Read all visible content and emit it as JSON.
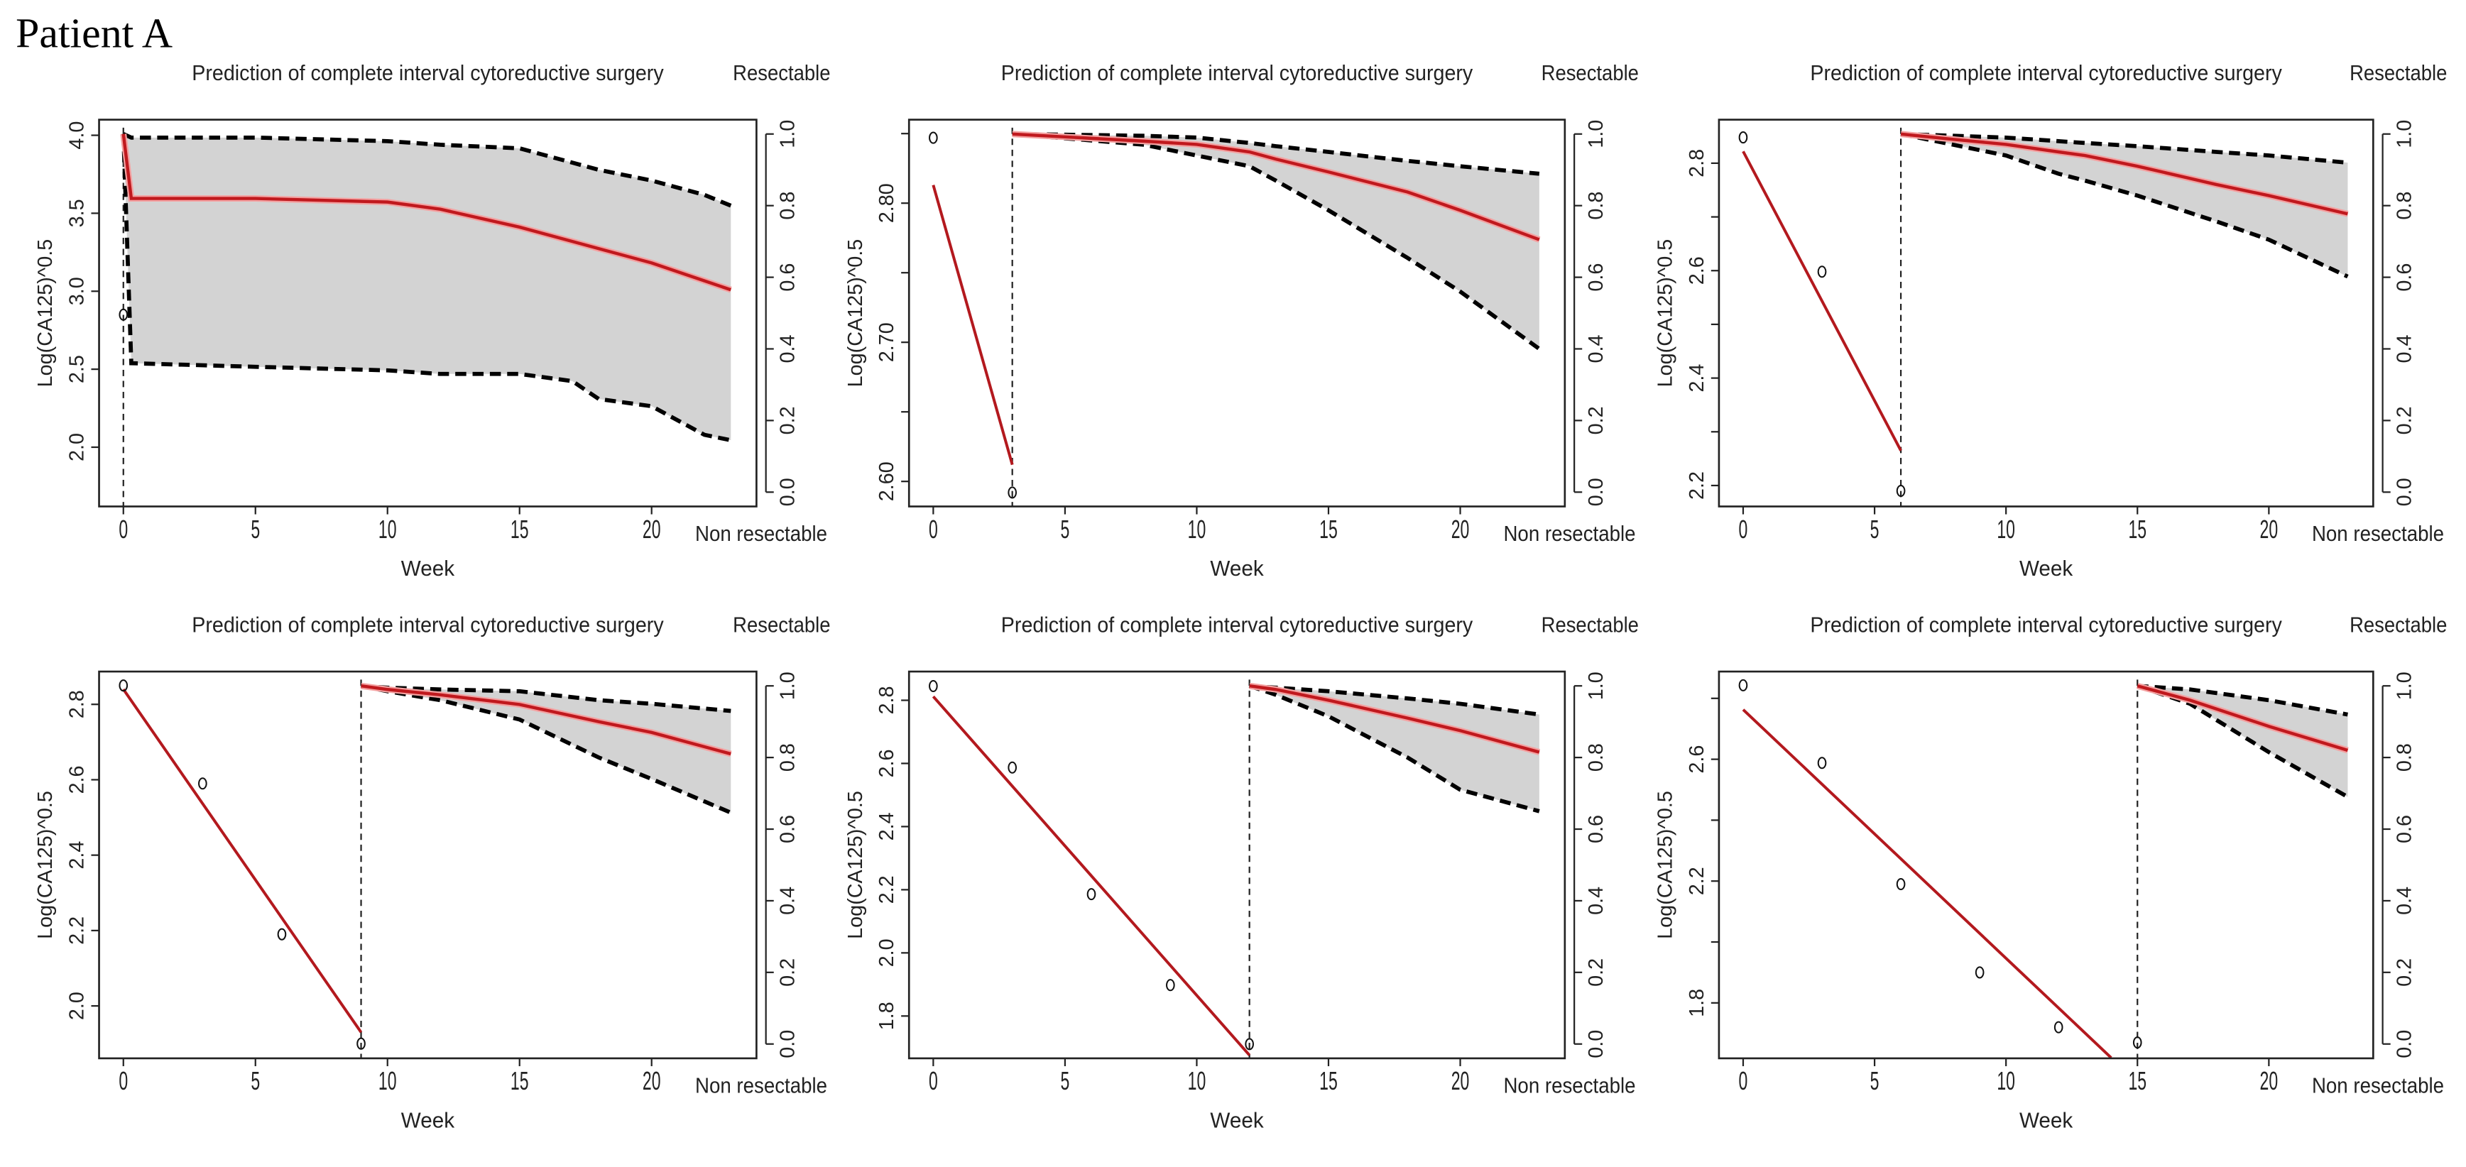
{
  "figure_title": "Patient A",
  "chart_data": [
    {
      "type": "line",
      "title": "Prediction of complete interval cytoreductive surgery",
      "xlabel": "Week",
      "ylabel": "Log(CA125)^0.5",
      "right_axis_top_label": "Resectable",
      "right_axis_bottom_label": "Non resectable",
      "xlim": [
        -0.92,
        23.97
      ],
      "ylim_left": [
        1.62,
        4.1
      ],
      "ylim_right": [
        -0.04,
        1.04
      ],
      "xticks": [
        {
          "v": 0,
          "label": "0"
        },
        {
          "v": 5,
          "label": "5"
        },
        {
          "v": 10,
          "label": "10"
        },
        {
          "v": 15,
          "label": "15"
        },
        {
          "v": 20,
          "label": "20"
        }
      ],
      "yticks_left": [
        {
          "v": 2.0,
          "label": "2.0"
        },
        {
          "v": 2.5,
          "label": "2.5"
        },
        {
          "v": 3.0,
          "label": "3.0"
        },
        {
          "v": 3.5,
          "label": "3.5"
        },
        {
          "v": 4.0,
          "label": "4.0"
        }
      ],
      "yticks_right": [
        {
          "v": 0,
          "label": "0.0"
        },
        {
          "v": 0.2,
          "label": "0.2"
        },
        {
          "v": 0.4,
          "label": "0.4"
        },
        {
          "v": 0.6,
          "label": "0.6"
        },
        {
          "v": 0.8,
          "label": "0.8"
        },
        {
          "v": 1.0,
          "label": "1.0"
        }
      ],
      "cutoff_week": 0,
      "observed": {
        "x": [
          0
        ],
        "y": [
          2.85
        ]
      },
      "fit_line": {
        "x": [],
        "y": []
      },
      "prediction": {
        "x": [
          0,
          0.3,
          5,
          10,
          12,
          15,
          17,
          18,
          20,
          22,
          23
        ],
        "median": [
          1.0,
          0.82,
          0.82,
          0.81,
          0.79,
          0.74,
          0.7,
          0.68,
          0.64,
          0.59,
          0.565
        ],
        "upper": [
          1.0,
          0.99,
          0.99,
          0.98,
          0.97,
          0.96,
          0.92,
          0.9,
          0.87,
          0.83,
          0.8
        ],
        "lower": [
          1.0,
          0.36,
          0.35,
          0.34,
          0.33,
          0.33,
          0.31,
          0.26,
          0.24,
          0.16,
          0.145
        ]
      }
    },
    {
      "type": "line",
      "title": "Prediction of complete interval cytoreductive surgery",
      "xlabel": "Week",
      "ylabel": "Log(CA125)^0.5",
      "right_axis_top_label": "Resectable",
      "right_axis_bottom_label": "Non resectable",
      "xlim": [
        -0.92,
        23.97
      ],
      "ylim_left": [
        2.582,
        2.86
      ],
      "ylim_right": [
        -0.04,
        1.04
      ],
      "xticks": [
        {
          "v": 0,
          "label": "0"
        },
        {
          "v": 5,
          "label": "5"
        },
        {
          "v": 10,
          "label": "10"
        },
        {
          "v": 15,
          "label": "15"
        },
        {
          "v": 20,
          "label": "20"
        }
      ],
      "yticks_left": [
        {
          "v": 2.6,
          "label": "2.60"
        },
        {
          "v": 2.65,
          "label": ""
        },
        {
          "v": 2.7,
          "label": "2.70"
        },
        {
          "v": 2.75,
          "label": ""
        },
        {
          "v": 2.8,
          "label": "2.80"
        },
        {
          "v": 2.85,
          "label": ""
        }
      ],
      "yticks_right": [
        {
          "v": 0,
          "label": "0.0"
        },
        {
          "v": 0.2,
          "label": "0.2"
        },
        {
          "v": 0.4,
          "label": "0.4"
        },
        {
          "v": 0.6,
          "label": "0.6"
        },
        {
          "v": 0.8,
          "label": "0.8"
        },
        {
          "v": 1.0,
          "label": "1.0"
        }
      ],
      "cutoff_week": 3,
      "observed": {
        "x": [
          0,
          3
        ],
        "y": [
          2.847,
          2.592
        ]
      },
      "fit_line": {
        "x": [
          0,
          3
        ],
        "y": [
          2.813,
          2.612
        ]
      },
      "prediction": {
        "x": [
          3,
          8,
          10,
          12,
          13,
          15,
          18,
          20,
          23
        ],
        "median": [
          1.0,
          0.98,
          0.971,
          0.95,
          0.93,
          0.894,
          0.838,
          0.787,
          0.705
        ],
        "upper": [
          1.0,
          0.995,
          0.99,
          0.975,
          0.966,
          0.95,
          0.925,
          0.91,
          0.889
        ],
        "lower": [
          1.0,
          0.97,
          0.94,
          0.91,
          0.87,
          0.787,
          0.654,
          0.56,
          0.4
        ]
      }
    },
    {
      "type": "line",
      "title": "Prediction of complete interval cytoreductive surgery",
      "xlabel": "Week",
      "ylabel": "Log(CA125)^0.5",
      "right_axis_top_label": "Resectable",
      "right_axis_bottom_label": "Non resectable",
      "xlim": [
        -0.92,
        23.97
      ],
      "ylim_left": [
        2.161,
        2.881
      ],
      "ylim_right": [
        -0.04,
        1.04
      ],
      "xticks": [
        {
          "v": 0,
          "label": "0"
        },
        {
          "v": 5,
          "label": "5"
        },
        {
          "v": 10,
          "label": "10"
        },
        {
          "v": 15,
          "label": "15"
        },
        {
          "v": 20,
          "label": "20"
        }
      ],
      "yticks_left": [
        {
          "v": 2.2,
          "label": "2.2"
        },
        {
          "v": 2.3,
          "label": ""
        },
        {
          "v": 2.4,
          "label": "2.4"
        },
        {
          "v": 2.5,
          "label": ""
        },
        {
          "v": 2.6,
          "label": "2.6"
        },
        {
          "v": 2.7,
          "label": ""
        },
        {
          "v": 2.8,
          "label": "2.8"
        }
      ],
      "yticks_right": [
        {
          "v": 0,
          "label": "0.0"
        },
        {
          "v": 0.2,
          "label": "0.2"
        },
        {
          "v": 0.4,
          "label": "0.4"
        },
        {
          "v": 0.6,
          "label": "0.6"
        },
        {
          "v": 0.8,
          "label": "0.8"
        },
        {
          "v": 1.0,
          "label": "1.0"
        }
      ],
      "cutoff_week": 6,
      "observed": {
        "x": [
          0,
          3,
          6
        ],
        "y": [
          2.848,
          2.598,
          2.19
        ]
      },
      "fit_line": {
        "x": [
          0,
          6
        ],
        "y": [
          2.822,
          2.265
        ]
      },
      "prediction": {
        "x": [
          6,
          8,
          10,
          12,
          13,
          15,
          18,
          20,
          23
        ],
        "median": [
          1.0,
          0.985,
          0.971,
          0.95,
          0.94,
          0.91,
          0.859,
          0.828,
          0.777
        ],
        "upper": [
          1.0,
          0.995,
          0.99,
          0.98,
          0.975,
          0.966,
          0.95,
          0.94,
          0.92
        ],
        "lower": [
          1.0,
          0.97,
          0.94,
          0.889,
          0.87,
          0.828,
          0.756,
          0.705,
          0.602
        ]
      }
    },
    {
      "type": "line",
      "title": "Prediction of complete interval cytoreductive surgery",
      "xlabel": "Week",
      "ylabel": "Log(CA125)^0.5",
      "right_axis_top_label": "Resectable",
      "right_axis_bottom_label": "Non resectable",
      "xlim": [
        -0.92,
        23.97
      ],
      "ylim_left": [
        1.861,
        2.887
      ],
      "ylim_right": [
        -0.04,
        1.04
      ],
      "xticks": [
        {
          "v": 0,
          "label": "0"
        },
        {
          "v": 5,
          "label": "5"
        },
        {
          "v": 10,
          "label": "10"
        },
        {
          "v": 15,
          "label": "15"
        },
        {
          "v": 20,
          "label": "20"
        }
      ],
      "yticks_left": [
        {
          "v": 2.0,
          "label": "2.0"
        },
        {
          "v": 2.2,
          "label": "2.2"
        },
        {
          "v": 2.4,
          "label": "2.4"
        },
        {
          "v": 2.6,
          "label": "2.6"
        },
        {
          "v": 2.8,
          "label": "2.8"
        }
      ],
      "yticks_right": [
        {
          "v": 0,
          "label": "0.0"
        },
        {
          "v": 0.2,
          "label": "0.2"
        },
        {
          "v": 0.4,
          "label": "0.4"
        },
        {
          "v": 0.6,
          "label": "0.6"
        },
        {
          "v": 0.8,
          "label": "0.8"
        },
        {
          "v": 1.0,
          "label": "1.0"
        }
      ],
      "cutoff_week": 9,
      "observed": {
        "x": [
          0,
          3,
          6,
          9
        ],
        "y": [
          2.85,
          2.59,
          2.19,
          1.9
        ]
      },
      "fit_line": {
        "x": [
          0,
          9
        ],
        "y": [
          2.84,
          1.93
        ]
      },
      "prediction": {
        "x": [
          9,
          10,
          12,
          15,
          18,
          20,
          23
        ],
        "median": [
          1.0,
          0.99,
          0.975,
          0.948,
          0.9,
          0.87,
          0.81
        ],
        "upper": [
          1.0,
          0.995,
          0.99,
          0.985,
          0.96,
          0.95,
          0.93
        ],
        "lower": [
          1.0,
          0.985,
          0.96,
          0.906,
          0.8,
          0.74,
          0.646
        ]
      }
    },
    {
      "type": "line",
      "title": "Prediction of complete interval cytoreductive surgery",
      "xlabel": "Week",
      "ylabel": "Log(CA125)^0.5",
      "right_axis_top_label": "Resectable",
      "right_axis_bottom_label": "Non resectable",
      "xlim": [
        -0.92,
        23.97
      ],
      "ylim_left": [
        1.666,
        2.891
      ],
      "ylim_right": [
        -0.04,
        1.04
      ],
      "xticks": [
        {
          "v": 0,
          "label": "0"
        },
        {
          "v": 5,
          "label": "5"
        },
        {
          "v": 10,
          "label": "10"
        },
        {
          "v": 15,
          "label": "15"
        },
        {
          "v": 20,
          "label": "20"
        }
      ],
      "yticks_left": [
        {
          "v": 1.8,
          "label": "1.8"
        },
        {
          "v": 2.0,
          "label": "2.0"
        },
        {
          "v": 2.2,
          "label": "2.2"
        },
        {
          "v": 2.4,
          "label": "2.4"
        },
        {
          "v": 2.6,
          "label": "2.6"
        },
        {
          "v": 2.8,
          "label": "2.8"
        }
      ],
      "yticks_right": [
        {
          "v": 0,
          "label": "0.0"
        },
        {
          "v": 0.2,
          "label": "0.2"
        },
        {
          "v": 0.4,
          "label": "0.4"
        },
        {
          "v": 0.6,
          "label": "0.6"
        },
        {
          "v": 0.8,
          "label": "0.8"
        },
        {
          "v": 1.0,
          "label": "1.0"
        }
      ],
      "cutoff_week": 12,
      "observed": {
        "x": [
          0,
          3,
          6,
          9,
          12
        ],
        "y": [
          2.845,
          2.587,
          2.186,
          1.898,
          1.711
        ]
      },
      "fit_line": {
        "x": [
          0,
          12
        ],
        "y": [
          2.812,
          1.676
        ]
      },
      "prediction": {
        "x": [
          12,
          13,
          15,
          18,
          20,
          23
        ],
        "median": [
          1.0,
          0.99,
          0.96,
          0.91,
          0.875,
          0.815
        ],
        "upper": [
          1.0,
          0.995,
          0.985,
          0.965,
          0.95,
          0.92
        ],
        "lower": [
          1.0,
          0.975,
          0.915,
          0.8,
          0.71,
          0.65
        ]
      }
    },
    {
      "type": "line",
      "title": "Prediction of complete interval cytoreductive surgery",
      "xlabel": "Week",
      "ylabel": "Log(CA125)^0.5",
      "right_axis_top_label": "Resectable",
      "right_axis_bottom_label": "Non resectable",
      "xlim": [
        -0.92,
        23.97
      ],
      "ylim_left": [
        1.618,
        2.888
      ],
      "ylim_right": [
        -0.04,
        1.04
      ],
      "xticks": [
        {
          "v": 0,
          "label": "0"
        },
        {
          "v": 5,
          "label": "5"
        },
        {
          "v": 10,
          "label": "10"
        },
        {
          "v": 15,
          "label": "15"
        },
        {
          "v": 20,
          "label": "20"
        }
      ],
      "yticks_left": [
        {
          "v": 1.8,
          "label": "1.8"
        },
        {
          "v": 2.0,
          "label": ""
        },
        {
          "v": 2.2,
          "label": "2.2"
        },
        {
          "v": 2.4,
          "label": ""
        },
        {
          "v": 2.6,
          "label": "2.6"
        },
        {
          "v": 2.8,
          "label": ""
        }
      ],
      "yticks_right": [
        {
          "v": 0,
          "label": "0.0"
        },
        {
          "v": 0.2,
          "label": "0.2"
        },
        {
          "v": 0.4,
          "label": "0.4"
        },
        {
          "v": 0.6,
          "label": "0.6"
        },
        {
          "v": 0.8,
          "label": "0.8"
        },
        {
          "v": 1.0,
          "label": "1.0"
        }
      ],
      "cutoff_week": 15,
      "observed": {
        "x": [
          0,
          3,
          6,
          9,
          12,
          15
        ],
        "y": [
          2.843,
          2.588,
          2.19,
          1.9,
          1.72,
          1.67
        ]
      },
      "fit_line": {
        "x": [
          0,
          14
        ],
        "y": [
          2.763,
          1.62
        ]
      },
      "prediction": {
        "x": [
          15,
          17,
          20,
          23
        ],
        "median": [
          1.0,
          0.96,
          0.887,
          0.82
        ],
        "upper": [
          1.0,
          0.99,
          0.96,
          0.92
        ],
        "lower": [
          1.0,
          0.95,
          0.815,
          0.69
        ]
      }
    }
  ]
}
